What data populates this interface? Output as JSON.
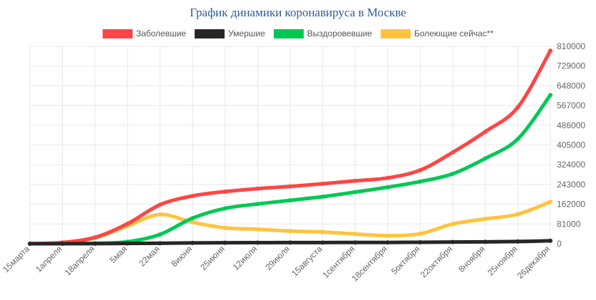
{
  "title": "График динамики коронавируса в Москве",
  "colors": {
    "infected": "#ff4545",
    "deaths": "#262626",
    "recovered": "#00c853",
    "active": "#ffc33d",
    "grid": "#e8e8e8",
    "tick": "#666666"
  },
  "chart_data": {
    "type": "line",
    "title": "График динамики коронавируса в Москве",
    "xlabel": "",
    "ylabel": "",
    "x_ticks": [
      "15марта",
      "1апреля",
      "18апреля",
      "5мая",
      "22мая",
      "8июня",
      "25июня",
      "12июля",
      "29июля",
      "15августа",
      "1сентября",
      "18сентября",
      "5октября",
      "22октября",
      "8ноября",
      "25ноября",
      "26декабря"
    ],
    "y_ticks": [
      0,
      81000,
      162000,
      243000,
      324000,
      405000,
      486000,
      567000,
      648000,
      729000,
      810000
    ],
    "ylim": [
      0,
      810000
    ],
    "y_axis_position": "right",
    "legend_position": "top",
    "grid": true,
    "series": [
      {
        "name": "Заболевшие",
        "color": "#ff4545",
        "x": [
          "15марта",
          "1апреля",
          "18апреля",
          "5мая",
          "22мая",
          "8июня",
          "25июня",
          "12июля",
          "29июля",
          "15августа",
          "1сентября",
          "18сентября",
          "5октября",
          "22октября",
          "8ноября",
          "25ноября",
          "26декабря"
        ],
        "values": [
          100,
          5000,
          26000,
          82000,
          160000,
          196000,
          214000,
          226000,
          235000,
          246000,
          258000,
          270000,
          302000,
          375000,
          460000,
          560000,
          792000
        ]
      },
      {
        "name": "Умершие",
        "color": "#262626",
        "x": [
          "15марта",
          "1апреля",
          "18апреля",
          "5мая",
          "22мая",
          "8июня",
          "25июня",
          "12июля",
          "29июля",
          "15августа",
          "1сентября",
          "18сентября",
          "5октября",
          "22октября",
          "8ноября",
          "25ноября",
          "26декабря"
        ],
        "values": [
          0,
          50,
          400,
          1000,
          2000,
          3200,
          4000,
          4400,
          4700,
          4900,
          5100,
          5300,
          6000,
          6800,
          7800,
          9000,
          12000
        ]
      },
      {
        "name": "Выздоровевшие",
        "color": "#00c853",
        "x": [
          "15марта",
          "1апреля",
          "18апреля",
          "5мая",
          "22мая",
          "8июня",
          "25июня",
          "12июля",
          "29июля",
          "15августа",
          "1сентября",
          "18сентября",
          "5октября",
          "22октября",
          "8ноября",
          "25ноября",
          "26декабря"
        ],
        "values": [
          0,
          300,
          2000,
          8000,
          38000,
          105000,
          145000,
          163000,
          178000,
          193000,
          212000,
          232000,
          255000,
          287000,
          350000,
          430000,
          610000
        ]
      },
      {
        "name": "Болеющие сейчас**",
        "color": "#ffc33d",
        "x": [
          "15марта",
          "1апреля",
          "18апреля",
          "5мая",
          "22мая",
          "8июня",
          "25июня",
          "12июля",
          "29июля",
          "15августа",
          "1сентября",
          "18сентября",
          "5октября",
          "22октября",
          "8ноября",
          "25ноября",
          "26декабря"
        ],
        "values": [
          100,
          4700,
          23500,
          73000,
          120000,
          88000,
          65000,
          59000,
          52000,
          48000,
          40000,
          33000,
          41000,
          81000,
          102000,
          121000,
          172000
        ]
      }
    ]
  }
}
